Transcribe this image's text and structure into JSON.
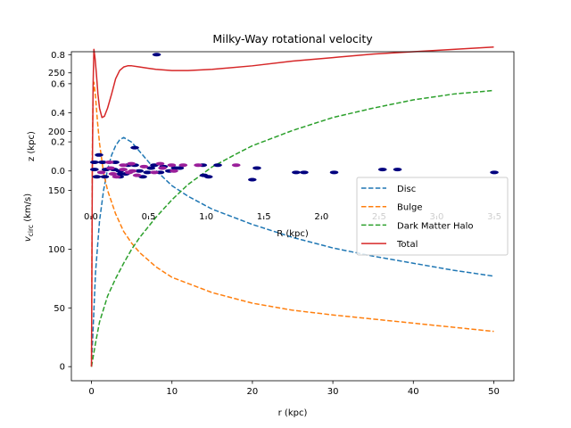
{
  "chart_data": [
    {
      "type": "line",
      "title": "Milky-Way rotational velocity",
      "xlabel": "r (kpc)",
      "ylabel": "v_circ (km/s)",
      "xlim": [
        -2.5,
        52.5
      ],
      "ylim": [
        -12,
        268
      ],
      "xticks": [
        0,
        10,
        20,
        30,
        40,
        50
      ],
      "xtick_labels": [
        "0",
        "10",
        "20",
        "30",
        "40",
        "50"
      ],
      "yticks": [
        0,
        50,
        100,
        150,
        200,
        250
      ],
      "ytick_labels": [
        "0",
        "50",
        "100",
        "150",
        "200",
        "250"
      ],
      "legend": "center-right",
      "series": [
        {
          "name": "Disc",
          "color": "#1f77b4",
          "style": "dashed",
          "x": [
            0,
            0.5,
            1,
            1.5,
            2,
            2.5,
            3,
            3.5,
            4,
            5,
            6,
            7,
            8,
            10,
            12,
            15,
            20,
            25,
            30,
            35,
            40,
            45,
            50
          ],
          "y": [
            0,
            80,
            124,
            150,
            168,
            180,
            188,
            193,
            195,
            191,
            183,
            175,
            167,
            154,
            145,
            134,
            121,
            110,
            101,
            94,
            88,
            82,
            77
          ]
        },
        {
          "name": "Bulge",
          "color": "#ff7f0e",
          "style": "dashed",
          "x": [
            0,
            0.1,
            0.2,
            0.3,
            0.5,
            0.75,
            1,
            1.5,
            2,
            3,
            4,
            5,
            6,
            8,
            10,
            15,
            20,
            25,
            30,
            40,
            50
          ],
          "y": [
            0,
            180,
            232,
            242,
            230,
            208,
            190,
            165,
            150,
            130,
            115,
            105,
            97,
            85,
            76,
            63,
            54,
            48,
            44,
            37,
            30
          ]
        },
        {
          "name": "Dark Matter Halo",
          "color": "#2ca02c",
          "style": "dashed",
          "x": [
            0,
            0.5,
            1,
            2,
            3,
            4,
            5,
            6,
            8,
            10,
            12,
            15,
            18,
            20,
            25,
            30,
            35,
            40,
            45,
            50
          ],
          "y": [
            0,
            20,
            38,
            60,
            75,
            88,
            100,
            110,
            127,
            142,
            155,
            170,
            181,
            188,
            201,
            212,
            220,
            227,
            232,
            235
          ]
        },
        {
          "name": "Total",
          "color": "#d62728",
          "style": "solid",
          "x": [
            0,
            0.1,
            0.2,
            0.3,
            0.45,
            0.6,
            0.8,
            1,
            1.3,
            1.6,
            2,
            2.5,
            3,
            3.5,
            4,
            4.5,
            5,
            6,
            7,
            8,
            10,
            12,
            15,
            20,
            25,
            30,
            35,
            40,
            45,
            50
          ],
          "y": [
            0,
            160,
            240,
            270,
            262,
            250,
            232,
            220,
            212,
            213,
            220,
            232,
            245,
            252,
            255,
            256,
            256,
            255,
            254,
            253,
            252,
            252,
            253,
            256,
            260,
            263,
            266,
            268,
            270,
            272
          ]
        }
      ]
    },
    {
      "type": "scatter",
      "xlabel": "R (kpc)",
      "ylabel": "z (kpc)",
      "xlim": [
        -0.17,
        3.67
      ],
      "ylim": [
        -0.48,
        0.82
      ],
      "xticks": [
        0.0,
        0.5,
        1.0,
        1.5,
        2.0,
        2.5,
        3.0,
        3.5
      ],
      "xtick_labels": [
        "0.0",
        "0.5",
        "1.0",
        "1.5",
        "2.0",
        "2.5",
        "3.0",
        "3.5"
      ],
      "yticks": [
        0.0,
        0.2,
        0.4,
        0.6,
        0.8
      ],
      "ytick_labels": [
        "0.0",
        "0.2",
        "0.4",
        "0.6",
        "0.8"
      ],
      "series": [
        {
          "color": "#00007f",
          "points": [
            [
              0.57,
              0.8
            ],
            [
              0.38,
              0.16
            ],
            [
              0.07,
              0.11
            ],
            [
              0.03,
              0.06
            ],
            [
              0.1,
              0.06
            ],
            [
              0.21,
              0.06
            ],
            [
              0.32,
              0.04
            ],
            [
              0.38,
              0.04
            ],
            [
              0.52,
              0.02
            ],
            [
              0.55,
              0.04
            ],
            [
              0.63,
              0.03
            ],
            [
              0.73,
              0.02
            ],
            [
              0.77,
              0.02
            ],
            [
              0.97,
              0.04
            ],
            [
              1.1,
              0.04
            ],
            [
              1.44,
              0.02
            ],
            [
              0.03,
              0.01
            ],
            [
              0.13,
              0.01
            ],
            [
              0.2,
              0.01
            ],
            [
              0.25,
              0.0
            ],
            [
              0.3,
              -0.02
            ],
            [
              0.42,
              0.0
            ],
            [
              0.49,
              -0.01
            ],
            [
              0.6,
              -0.01
            ],
            [
              0.68,
              0.0
            ],
            [
              0.05,
              -0.04
            ],
            [
              0.12,
              -0.04
            ],
            [
              0.25,
              -0.04
            ],
            [
              0.45,
              -0.04
            ],
            [
              0.26,
              -0.02
            ],
            [
              0.98,
              -0.03
            ],
            [
              1.02,
              -0.04
            ],
            [
              1.4,
              -0.06
            ],
            [
              1.78,
              -0.01
            ],
            [
              1.85,
              -0.01
            ],
            [
              2.11,
              -0.01
            ],
            [
              2.53,
              0.01
            ],
            [
              2.66,
              0.01
            ],
            [
              3.5,
              -0.01
            ]
          ]
        },
        {
          "color": "#9a1f9a",
          "points": [
            [
              0.16,
              0.06
            ],
            [
              0.28,
              0.04
            ],
            [
              0.35,
              0.05
            ],
            [
              0.46,
              0.03
            ],
            [
              0.6,
              0.05
            ],
            [
              0.7,
              0.04
            ],
            [
              0.8,
              0.04
            ],
            [
              0.93,
              0.04
            ],
            [
              1.26,
              0.04
            ],
            [
              0.17,
              0.02
            ],
            [
              0.28,
              0.01
            ],
            [
              0.36,
              0.0
            ],
            [
              0.62,
              0.02
            ],
            [
              0.72,
              0.0
            ],
            [
              0.09,
              -0.01
            ],
            [
              0.19,
              -0.02
            ],
            [
              0.33,
              -0.01
            ],
            [
              0.55,
              -0.01
            ],
            [
              0.22,
              -0.04
            ],
            [
              0.4,
              -0.03
            ]
          ]
        }
      ]
    }
  ]
}
